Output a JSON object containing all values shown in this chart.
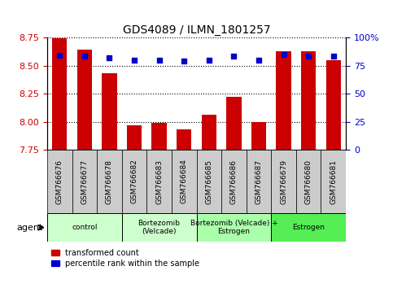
{
  "title": "GDS4089 / ILMN_1801257",
  "samples": [
    "GSM766676",
    "GSM766677",
    "GSM766678",
    "GSM766682",
    "GSM766683",
    "GSM766684",
    "GSM766685",
    "GSM766686",
    "GSM766687",
    "GSM766679",
    "GSM766680",
    "GSM766681"
  ],
  "bar_values": [
    8.74,
    8.64,
    8.43,
    7.97,
    7.99,
    7.93,
    8.06,
    8.22,
    8.0,
    8.63,
    8.63,
    8.55
  ],
  "dot_values": [
    84,
    83,
    82,
    80,
    80,
    79,
    80,
    83,
    80,
    85,
    83,
    83
  ],
  "ymin": 7.75,
  "ymax": 8.75,
  "yticks": [
    7.75,
    8.0,
    8.25,
    8.5,
    8.75
  ],
  "right_yticks": [
    0,
    25,
    50,
    75,
    100
  ],
  "right_yticklabels": [
    "0",
    "25",
    "50",
    "75",
    "100%"
  ],
  "bar_color": "#CC0000",
  "dot_color": "#0000CC",
  "bar_bottom": 7.75,
  "groups": [
    {
      "label": "control",
      "start": 0,
      "end": 3,
      "color": "#CCFFCC"
    },
    {
      "label": "Bortezomib\n(Velcade)",
      "start": 3,
      "end": 6,
      "color": "#CCFFCC"
    },
    {
      "label": "Bortezomib (Velcade) +\nEstrogen",
      "start": 6,
      "end": 9,
      "color": "#AAFFAA"
    },
    {
      "label": "Estrogen",
      "start": 9,
      "end": 12,
      "color": "#55EE55"
    }
  ],
  "agent_label": "agent",
  "legend_bar_label": "transformed count",
  "legend_dot_label": "percentile rank within the sample",
  "tick_label_color_left": "#CC0000",
  "tick_label_color_right": "#0000CC",
  "figsize": [
    4.83,
    3.54
  ],
  "dpi": 100
}
